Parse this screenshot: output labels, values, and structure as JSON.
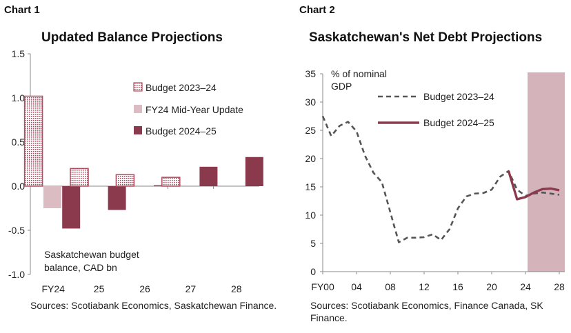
{
  "chart1": {
    "label": "Chart 1",
    "title": "Updated Balance Projections",
    "note_line1": "Saskatchewan budget",
    "note_line2": "balance, CAD bn",
    "source_text": "Sources: Scotiabank Economics, Saskatchewan Finance."
  },
  "chart2": {
    "label": "Chart 2",
    "title": "Saskatchewan's Net Debt Projections",
    "unit_line1": "% of nominal",
    "unit_line2": "GDP",
    "source_text": "Sources: Scotiabank Economics, Finance Canada, SK Finance."
  },
  "colors": {
    "budget_2023_24": "#b04f62",
    "mid_year": "#dbbcc2",
    "budget_2024_25": "#8b3a4e",
    "dashed_line": "#555555",
    "shade": "#d5b3bb"
  },
  "chart_data": [
    {
      "type": "bar",
      "categories": [
        "FY24",
        "25",
        "26",
        "27",
        "28"
      ],
      "ylim": [
        -1.0,
        1.5
      ],
      "yticks": [
        "1.5",
        "1.0",
        "0.5",
        "0.0",
        "-0.5",
        "-1.0"
      ],
      "series": [
        {
          "name": "Budget 2023–24",
          "pattern": "dotted",
          "values": [
            1.02,
            0.2,
            0.13,
            0.1,
            null
          ]
        },
        {
          "name": "FY24 Mid-Year Update",
          "values": [
            -0.25,
            null,
            null,
            null,
            null
          ]
        },
        {
          "name": "Budget 2024–25",
          "values": [
            -0.48,
            -0.27,
            0.01,
            0.22,
            0.33
          ]
        }
      ],
      "legend": "top-right"
    },
    {
      "type": "line",
      "ylim": [
        0,
        35
      ],
      "yticks": [
        "35",
        "30",
        "25",
        "20",
        "15",
        "10",
        "5",
        "0"
      ],
      "xlim": [
        2000,
        2028
      ],
      "xticks": [
        {
          "x": 2000,
          "label": "FY00"
        },
        {
          "x": 2004,
          "label": "04"
        },
        {
          "x": 2008,
          "label": "08"
        },
        {
          "x": 2012,
          "label": "12"
        },
        {
          "x": 2016,
          "label": "16"
        },
        {
          "x": 2020,
          "label": "20"
        },
        {
          "x": 2024,
          "label": "24"
        },
        {
          "x": 2028,
          "label": "28"
        }
      ],
      "shaded_region": [
        2024,
        2028
      ],
      "series": [
        {
          "name": "Budget 2023–24",
          "style": "dashed",
          "x": [
            2000,
            2001,
            2002,
            2003,
            2004,
            2005,
            2006,
            2007,
            2008,
            2009,
            2010,
            2011,
            2012,
            2013,
            2014,
            2015,
            2016,
            2017,
            2018,
            2019,
            2020,
            2021,
            2022,
            2023,
            2024,
            2025,
            2026,
            2027,
            2028
          ],
          "y": [
            27.5,
            24.0,
            25.8,
            26.5,
            24.8,
            20.5,
            17.5,
            15.8,
            10.5,
            5.2,
            6.0,
            6.0,
            6.1,
            6.6,
            5.6,
            7.5,
            11.2,
            13.3,
            13.8,
            13.9,
            14.5,
            16.8,
            17.8,
            14.5,
            13.4,
            13.8,
            14.0,
            13.8,
            13.6
          ]
        },
        {
          "name": "Budget 2024–25",
          "style": "solid",
          "x": [
            2022,
            2023,
            2024,
            2025,
            2026,
            2027,
            2028
          ],
          "y": [
            17.8,
            12.8,
            13.2,
            14.0,
            14.6,
            14.7,
            14.4
          ]
        }
      ],
      "legend": "top-left"
    }
  ]
}
